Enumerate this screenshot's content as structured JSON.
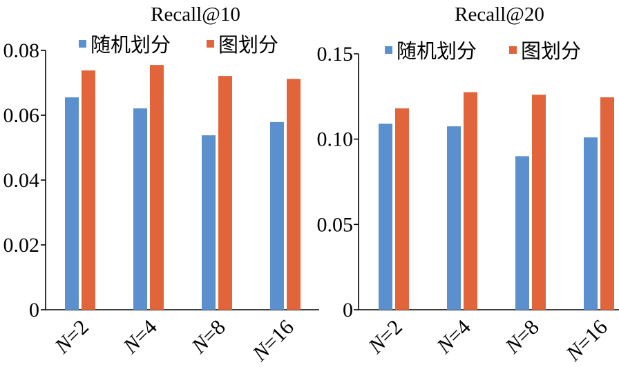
{
  "chart_data": [
    {
      "type": "bar",
      "title": "Recall@10",
      "xlabel": "",
      "ylabel": "",
      "categories": [
        {
          "var": "N",
          "rest": "=2"
        },
        {
          "var": "N",
          "rest": "=4"
        },
        {
          "var": "N",
          "rest": "=8"
        },
        {
          "var": "N",
          "rest": "=16"
        }
      ],
      "series": [
        {
          "name": "随机划分",
          "color": "#5b8fcd",
          "values": [
            0.0655,
            0.0621,
            0.0538,
            0.0579
          ]
        },
        {
          "name": "图划分",
          "color": "#e1643a",
          "values": [
            0.0738,
            0.0755,
            0.0721,
            0.0712
          ]
        }
      ],
      "ylim": [
        0,
        0.08
      ],
      "yticks": [
        "0",
        "0.02",
        "0.04",
        "0.06",
        "0.08"
      ],
      "ytick_values": [
        0,
        0.02,
        0.04,
        0.06,
        0.08
      ],
      "grid": false,
      "legend": "top"
    },
    {
      "type": "bar",
      "title": "Recall@20",
      "xlabel": "",
      "ylabel": "",
      "categories": [
        {
          "var": "N",
          "rest": "=2"
        },
        {
          "var": "N",
          "rest": "=4"
        },
        {
          "var": "N",
          "rest": "=8"
        },
        {
          "var": "N",
          "rest": "=16"
        }
      ],
      "series": [
        {
          "name": "随机划分",
          "color": "#5b8fcd",
          "values": [
            0.109,
            0.1075,
            0.09,
            0.101
          ]
        },
        {
          "name": "图划分",
          "color": "#e1643a",
          "values": [
            0.118,
            0.1275,
            0.126,
            0.1245
          ]
        }
      ],
      "ylim": [
        0,
        0.15
      ],
      "yticks": [
        "0",
        "0.05",
        "0.10",
        "0.15"
      ],
      "ytick_values": [
        0,
        0.05,
        0.1,
        0.15
      ],
      "grid": false,
      "legend": "top"
    }
  ]
}
